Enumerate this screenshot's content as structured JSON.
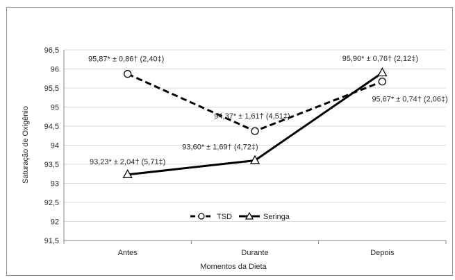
{
  "chart_data": {
    "type": "line",
    "title": "",
    "xlabel": "Momentos da Dieta",
    "ylabel": "Saturação de Oxigênio",
    "categories": [
      "Antes",
      "Durante",
      "Depois"
    ],
    "ylim": [
      91.5,
      96.5
    ],
    "yticks": [
      91.5,
      92,
      92.5,
      93,
      93.5,
      94,
      94.5,
      95,
      95.5,
      96,
      96.5
    ],
    "ytick_labels": [
      "91,5",
      "92",
      "92,5",
      "93",
      "93,5",
      "94",
      "94,5",
      "95",
      "95,5",
      "96",
      "96,5"
    ],
    "grid": true,
    "legend_position": "bottom-center",
    "series": [
      {
        "name": "TSD",
        "line_style": "dashed",
        "marker": "circle",
        "color": "#000000",
        "values": [
          95.87,
          94.37,
          95.67
        ],
        "labels": [
          "95,87* ± 0,86† (2,40‡)",
          "94,37* ± 1,61† (4,51‡)",
          "95,67* ± 0,74† (2,06‡)"
        ]
      },
      {
        "name": "Seringa",
        "line_style": "solid",
        "marker": "triangle",
        "color": "#000000",
        "values": [
          93.23,
          93.6,
          95.9
        ],
        "labels": [
          "93,23* ± 2,04† (5,71‡)",
          "93,60* ± 1,69† (4,72‡)",
          "95,90* ± 0,76† (2,12‡)"
        ]
      }
    ]
  }
}
